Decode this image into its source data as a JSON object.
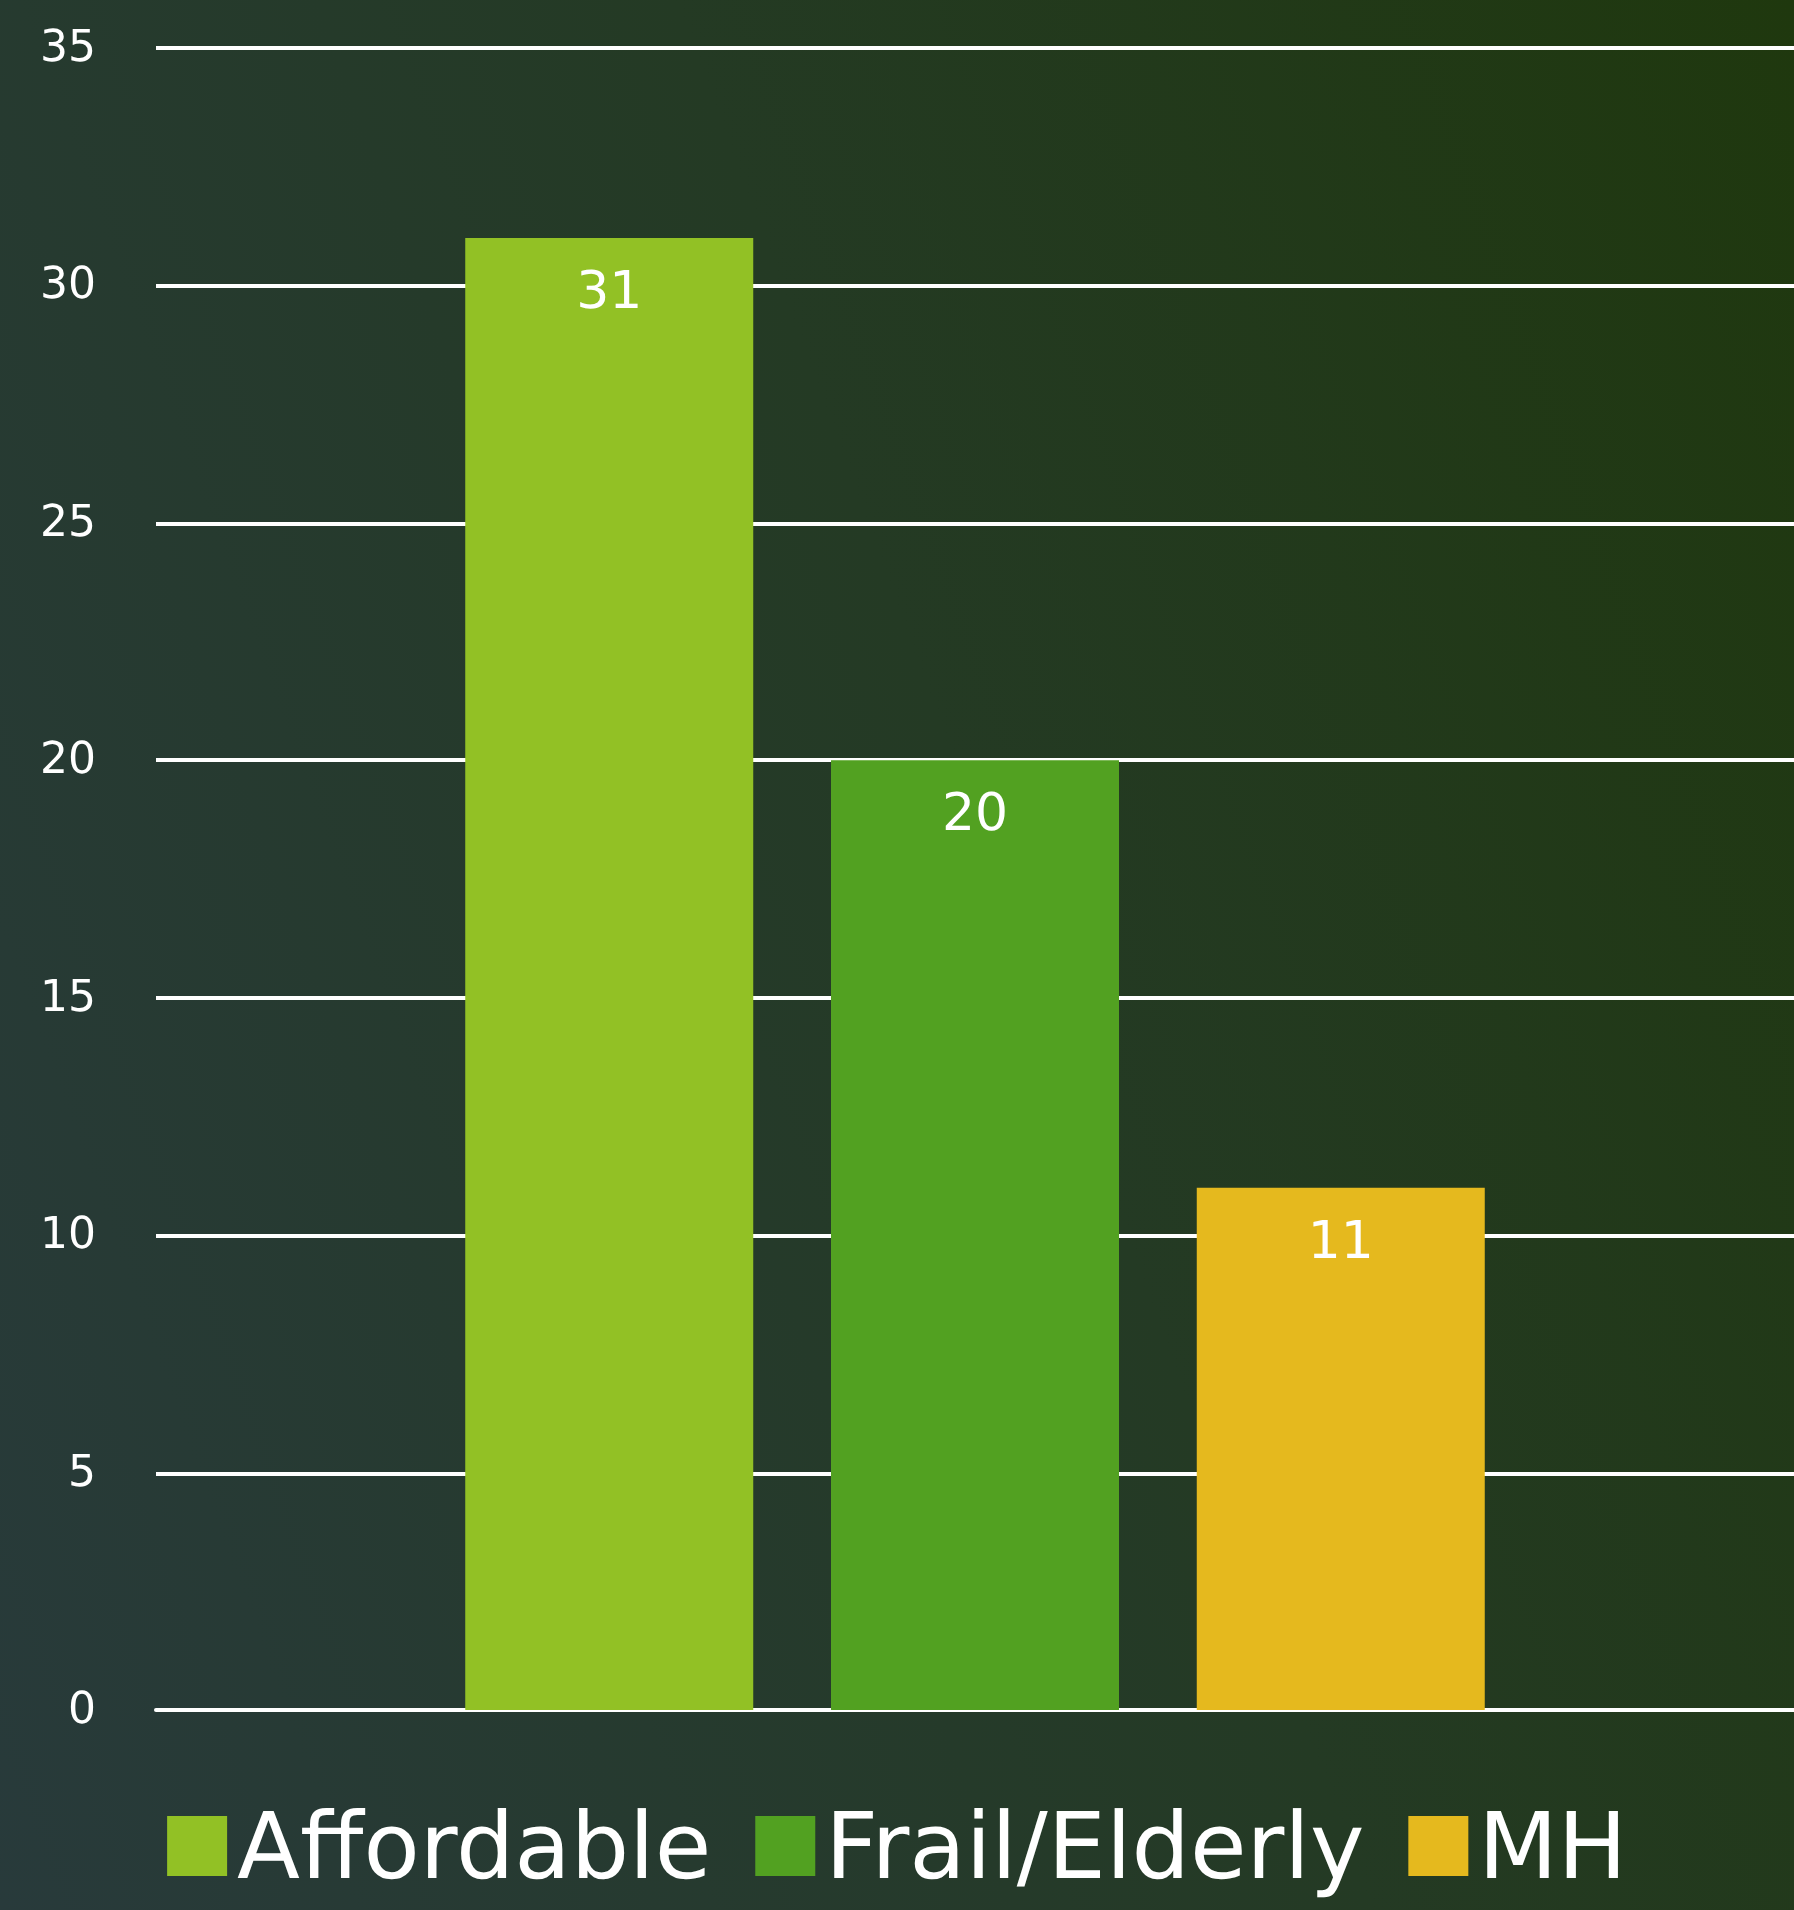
{
  "chart_data": {
    "type": "bar",
    "categories": [
      null
    ],
    "series": [
      {
        "name": "Affordable",
        "color": "#92c125",
        "values": [
          31
        ]
      },
      {
        "name": "Frail/Elderly",
        "color": "#52a121",
        "values": [
          20
        ]
      },
      {
        "name": "MH",
        "color": "#e5b91e",
        "values": [
          11
        ]
      }
    ],
    "ylim": [
      0,
      35
    ],
    "yticks": [
      0,
      5,
      10,
      15,
      20,
      25,
      30,
      35
    ],
    "grid": "y",
    "legend": "bottom",
    "data_labels": true
  }
}
